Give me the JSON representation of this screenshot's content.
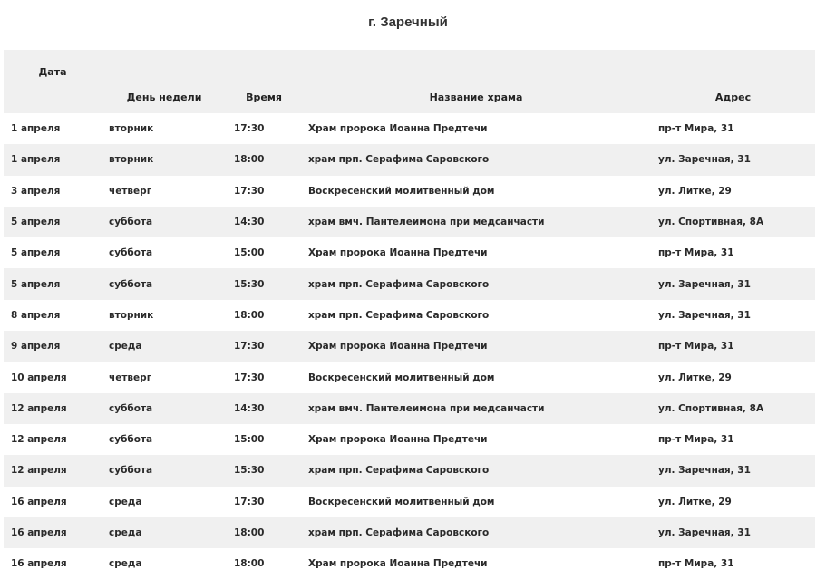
{
  "title": "г. Заречный",
  "columns": [
    "Дата",
    "День недели",
    "Время",
    "Название храма",
    "Адрес"
  ],
  "rows": [
    [
      "1 апреля",
      "вторник",
      "17:30",
      "Храм пророка Иоанна Предтечи",
      "пр-т Мира, 31"
    ],
    [
      "1 апреля",
      "вторник",
      "18:00",
      "храм прп. Серафима Саровского",
      "ул. Заречная, 31"
    ],
    [
      "3 апреля",
      "четверг",
      "17:30",
      "Воскресенский молитвенный дом",
      "ул. Литке, 29"
    ],
    [
      "5 апреля",
      "суббота",
      "14:30",
      "храм вмч. Пантелеимона при медсанчасти",
      "ул. Спортивная, 8А"
    ],
    [
      "5 апреля",
      "суббота",
      "15:00",
      "Храм пророка Иоанна Предтечи",
      "пр-т Мира, 31"
    ],
    [
      "5 апреля",
      "суббота",
      "15:30",
      "храм прп. Серафима Саровского",
      "ул. Заречная, 31"
    ],
    [
      "8 апреля",
      "вторник",
      "18:00",
      "храм прп. Серафима Саровского",
      "ул. Заречная, 31"
    ],
    [
      "9 апреля",
      "среда",
      "17:30",
      "Храм пророка Иоанна Предтечи",
      "пр-т Мира, 31"
    ],
    [
      "10 апреля",
      "четверг",
      "17:30",
      "Воскресенский молитвенный дом",
      "ул. Литке, 29"
    ],
    [
      "12 апреля",
      "суббота",
      "14:30",
      "храм вмч. Пантелеимона при медсанчасти",
      "ул. Спортивная, 8А"
    ],
    [
      "12 апреля",
      "суббота",
      "15:00",
      "Храм пророка Иоанна Предтечи",
      "пр-т Мира, 31"
    ],
    [
      "12 апреля",
      "суббота",
      "15:30",
      "храм прп. Серафима Саровского",
      "ул. Заречная, 31"
    ],
    [
      "16 апреля",
      "среда",
      "17:30",
      "Воскресенский молитвенный дом",
      "ул. Литке, 29"
    ],
    [
      "16 апреля",
      "среда",
      "18:00",
      "храм прп. Серафима Саровского",
      "ул. Заречная, 31"
    ],
    [
      "16 апреля",
      "среда",
      "18:00",
      "Храм пророка Иоанна Предтечи",
      "пр-т Мира, 31"
    ]
  ]
}
